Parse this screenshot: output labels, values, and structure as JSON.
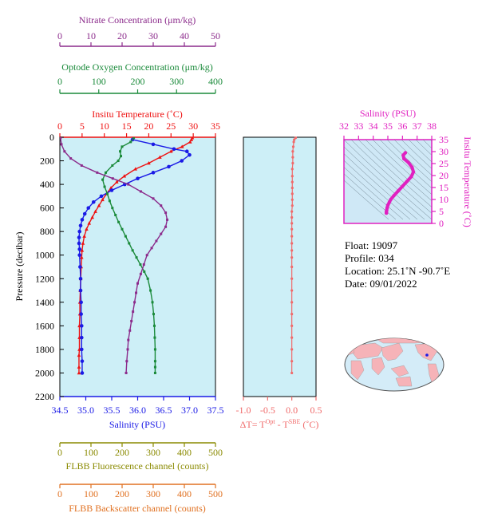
{
  "colors": {
    "nitrate": "#8b2a8b",
    "oxygen": "#1a8a3a",
    "temperature": "#ee1111",
    "salinity": "#1a1ae6",
    "delta": "#f06a6a",
    "fluorescence": "#8a8a00",
    "backscatter": "#e07020",
    "ts_axis": "#e020c0",
    "panel_bg": "#cdeff7",
    "ts_bg": "#cfe8f6"
  },
  "axes": {
    "nitrate": {
      "label": "Nitrate Concentration (μm/kg)",
      "ticks": [
        "0",
        "10",
        "20",
        "30",
        "40",
        "50"
      ]
    },
    "oxygen": {
      "label": "Optode Oxygen Concentration (μm/kg)",
      "ticks": [
        "0",
        "100",
        "200",
        "300",
        "400"
      ]
    },
    "temperature": {
      "label": "Insitu Temperature (˚C)",
      "ticks": [
        "0",
        "5",
        "10",
        "15",
        "20",
        "25",
        "30",
        "35"
      ]
    },
    "salinity": {
      "label": "Salinity (PSU)",
      "ticks": [
        "34.5",
        "35.0",
        "35.5",
        "36.0",
        "36.5",
        "37.0",
        "37.5"
      ]
    },
    "pressure": {
      "label": "Pressure (decibar)",
      "ticks": [
        "0",
        "200",
        "400",
        "600",
        "800",
        "1000",
        "1200",
        "1400",
        "1600",
        "1800",
        "2000",
        "2200"
      ]
    },
    "delta": {
      "label_prefix": "ΔT= T",
      "label_sup1": "Opt",
      "label_mid": " - T",
      "label_sup2": "SBE",
      "label_suffix": " (˚C)",
      "ticks": [
        "-1.0",
        "-0.5",
        "0.0",
        "0.5"
      ]
    },
    "fluorescence": {
      "label": "FLBB Fluorescence channel (counts)",
      "ticks": [
        "0",
        "100",
        "200",
        "300",
        "400",
        "500"
      ]
    },
    "backscatter": {
      "label": "FLBB Backscatter channel (counts)",
      "ticks": [
        "0",
        "100",
        "200",
        "300",
        "400",
        "500"
      ]
    },
    "ts_salinity": {
      "label": "Salinity (PSU)",
      "ticks": [
        "32",
        "33",
        "34",
        "35",
        "36",
        "37",
        "38"
      ]
    },
    "ts_temperature": {
      "label": "Insitu Temperature (˚C)",
      "ticks": [
        "0",
        "5",
        "10",
        "15",
        "20",
        "25",
        "30",
        "35"
      ]
    }
  },
  "info": {
    "float": "Float:  19097",
    "profile": "Profile:  034",
    "location": "Location:  25.1˚N  -90.7˚E",
    "date": "Date:  09/01/2022"
  },
  "chart_data": [
    {
      "type": "line",
      "title": "",
      "ylabel": "Pressure (decibar)",
      "ylim": [
        2200,
        0
      ],
      "grid": false,
      "series": [
        {
          "name": "Insitu Temperature (˚C)",
          "xlim": [
            0,
            35
          ],
          "x": [
            29.8,
            29.6,
            29.3,
            27.5,
            25.0,
            22.5,
            20.0,
            17.0,
            14.5,
            12.8,
            11.5,
            10.5,
            9.6,
            8.8,
            8.0,
            7.3,
            6.6,
            6.0,
            5.5,
            5.2,
            5.0,
            4.9,
            4.8,
            4.7,
            4.6,
            4.5,
            4.5,
            4.4,
            4.4,
            4.4,
            4.3,
            4.3,
            4.3
          ],
          "y": [
            5,
            20,
            40,
            80,
            120,
            170,
            220,
            270,
            330,
            380,
            430,
            480,
            530,
            580,
            630,
            680,
            730,
            780,
            840,
            900,
            960,
            1020,
            1100,
            1200,
            1300,
            1400,
            1500,
            1600,
            1700,
            1800,
            1850,
            1950,
            2000
          ]
        },
        {
          "name": "Salinity (PSU)",
          "xlim": [
            34.5,
            37.5
          ],
          "x": [
            35.9,
            36.3,
            36.7,
            36.95,
            37.0,
            36.85,
            36.6,
            36.3,
            36.0,
            35.75,
            35.5,
            35.3,
            35.15,
            35.05,
            34.98,
            34.93,
            34.9,
            34.88,
            34.87,
            34.87,
            34.88,
            34.88,
            34.89,
            34.9,
            34.9,
            34.91,
            34.91,
            34.92,
            34.92,
            34.92,
            34.93,
            34.93
          ],
          "y": [
            20,
            60,
            100,
            120,
            150,
            200,
            250,
            300,
            350,
            400,
            450,
            500,
            550,
            600,
            650,
            700,
            750,
            800,
            850,
            900,
            950,
            1000,
            1100,
            1200,
            1300,
            1400,
            1500,
            1600,
            1700,
            1800,
            1900,
            2000
          ]
        },
        {
          "name": "Optode Oxygen Concentration (μm/kg)",
          "xlim": [
            0,
            400
          ],
          "x": [
            190,
            182,
            160,
            155,
            157,
            150,
            135,
            118,
            110,
            115,
            122,
            128,
            135,
            143,
            151,
            160,
            169,
            178,
            187,
            197,
            207,
            217,
            226,
            233,
            238,
            241,
            243,
            244,
            245,
            245,
            245,
            245
          ],
          "y": [
            5,
            40,
            80,
            120,
            160,
            200,
            240,
            300,
            360,
            420,
            480,
            540,
            600,
            660,
            720,
            780,
            840,
            900,
            960,
            1020,
            1080,
            1140,
            1200,
            1300,
            1400,
            1500,
            1600,
            1700,
            1800,
            1900,
            1950,
            2000
          ]
        },
        {
          "name": "Nitrate Concentration (μm/kg)",
          "xlim": [
            0,
            50
          ],
          "x": [
            0.2,
            0.5,
            1.5,
            3.5,
            7,
            12,
            17,
            22,
            26,
            30,
            32.5,
            34,
            34.5,
            34,
            32.5,
            31,
            29.5,
            28,
            27,
            26,
            25,
            24.5,
            24,
            23.5,
            23,
            22.5,
            22,
            21.8,
            21.5,
            21.3
          ],
          "y": [
            5,
            60,
            120,
            180,
            240,
            300,
            350,
            400,
            460,
            520,
            580,
            640,
            700,
            760,
            820,
            880,
            940,
            1000,
            1080,
            1160,
            1240,
            1320,
            1400,
            1480,
            1560,
            1640,
            1720,
            1800,
            1900,
            2000
          ]
        }
      ]
    },
    {
      "type": "scatter",
      "title": "",
      "xlabel": "ΔT= TOpt - TSBE (˚C)",
      "xlim": [
        -1.0,
        0.5
      ],
      "ylim": [
        2200,
        0
      ],
      "series": [
        {
          "name": "ΔT",
          "x": [
            0.08,
            0.05,
            0.04,
            0.03,
            0.02,
            0.02,
            0.02,
            0.01,
            0.01,
            0.01,
            0.01,
            0.01,
            0.01,
            0.01,
            0.0,
            0.0,
            0.0,
            0.0,
            0.0,
            0.0,
            0.0,
            0.0,
            0.0,
            0.0,
            0.0,
            0.0,
            0.0,
            0.0,
            0.0,
            0.0,
            0.0,
            0.0
          ],
          "y": [
            5,
            20,
            40,
            80,
            120,
            170,
            220,
            270,
            330,
            380,
            430,
            480,
            530,
            580,
            630,
            680,
            730,
            780,
            840,
            900,
            960,
            1020,
            1100,
            1200,
            1300,
            1400,
            1500,
            1600,
            1700,
            1800,
            1900,
            2000
          ]
        }
      ]
    },
    {
      "type": "line",
      "title": "",
      "xlabel": "Salinity (PSU)",
      "ylabel": "Insitu Temperature (˚C)",
      "xlim": [
        32,
        38
      ],
      "ylim": [
        0,
        35
      ],
      "series": [
        {
          "name": "T-S",
          "x": [
            36.2,
            36.05,
            36.1,
            36.4,
            36.65,
            36.75,
            36.6,
            36.3,
            36.0,
            35.7,
            35.4,
            35.2,
            35.1,
            35.0,
            34.95,
            34.92,
            34.9,
            34.9
          ],
          "y": [
            29.5,
            28.5,
            27.0,
            25.5,
            23.5,
            21.5,
            19.5,
            17.5,
            15.5,
            13.5,
            11.5,
            10.0,
            8.8,
            7.6,
            6.5,
            5.5,
            4.8,
            4.3
          ]
        }
      ]
    }
  ]
}
